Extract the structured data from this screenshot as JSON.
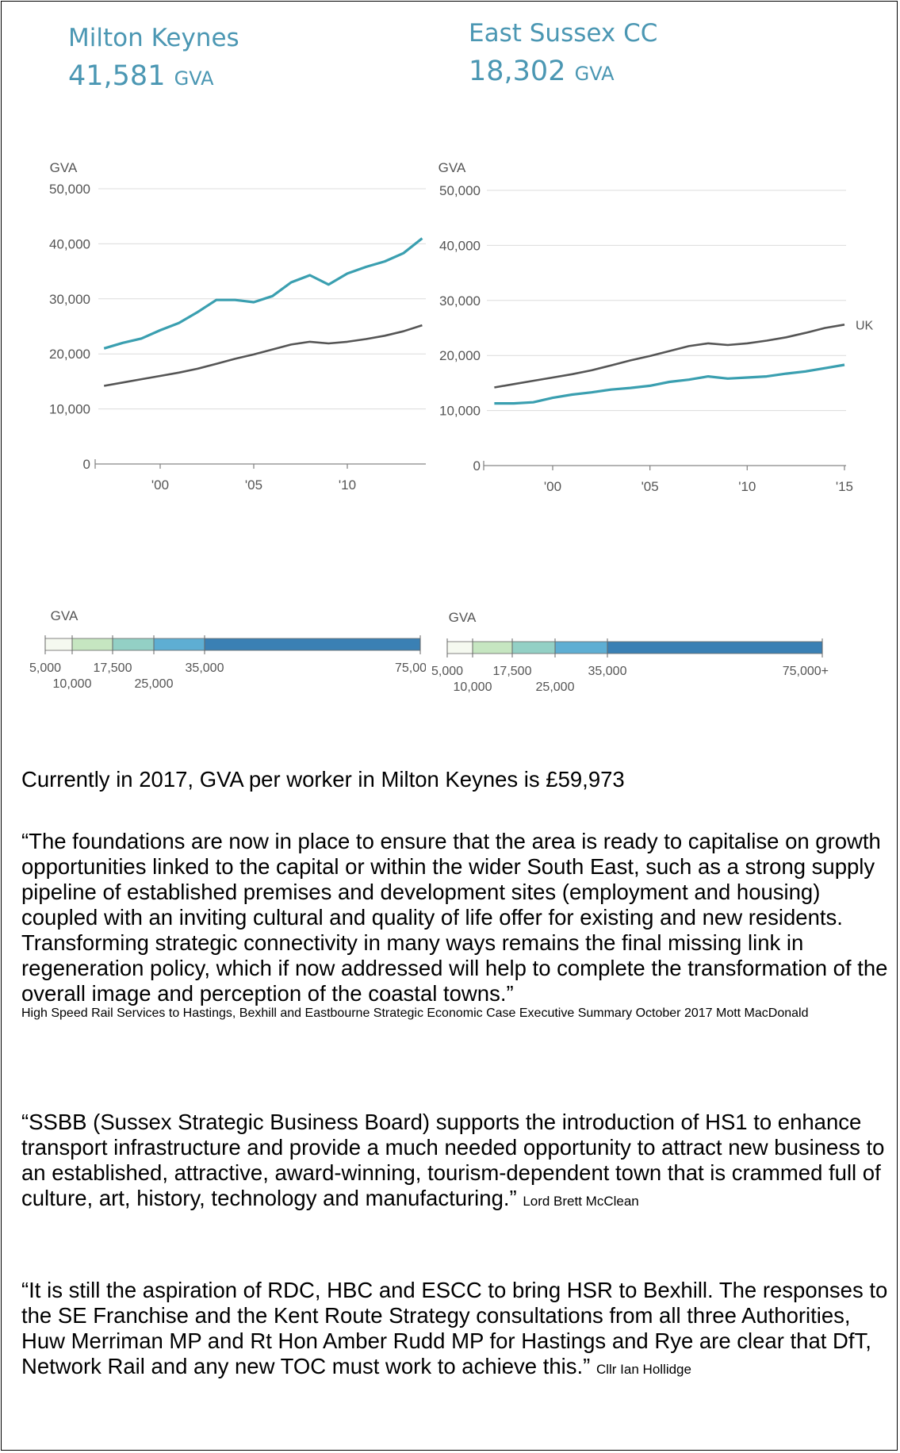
{
  "panels": [
    {
      "area": "Milton Keynes",
      "value": "41,581",
      "unit": "GVA"
    },
    {
      "area": "East Sussex CC",
      "value": "18,302",
      "unit": "GVA"
    }
  ],
  "chart_data": [
    {
      "type": "line",
      "ylabel": "GVA",
      "ylim": [
        0,
        50000
      ],
      "yticks": [
        "0",
        "10,000",
        "20,000",
        "30,000",
        "40,000",
        "50,000"
      ],
      "xticks": [
        "'00",
        "'05",
        "'10"
      ],
      "series": [
        {
          "color": "#3a9fb0",
          "x": [
            1997,
            1998,
            1999,
            2000,
            2001,
            2002,
            2003,
            2004,
            2005,
            2006,
            2007,
            2008,
            2009,
            2010,
            2011,
            2012,
            2013,
            2014
          ],
          "values": [
            21000,
            22000,
            22800,
            24300,
            25600,
            27600,
            29800,
            29800,
            29400,
            30500,
            33000,
            34300,
            32600,
            34600,
            35800,
            36800,
            38300,
            41000
          ]
        },
        {
          "color": "#555555",
          "x": [
            1997,
            1998,
            1999,
            2000,
            2001,
            2002,
            2003,
            2004,
            2005,
            2006,
            2007,
            2008,
            2009,
            2010,
            2011,
            2012,
            2013,
            2014
          ],
          "values": [
            14200,
            14800,
            15400,
            16000,
            16600,
            17300,
            18200,
            19100,
            19900,
            20800,
            21700,
            22200,
            21900,
            22200,
            22700,
            23300,
            24100,
            25200
          ]
        }
      ]
    },
    {
      "type": "line",
      "ylabel": "GVA",
      "ylim": [
        0,
        50000
      ],
      "yticks": [
        "0",
        "10,000",
        "20,000",
        "30,000",
        "40,000",
        "50,000"
      ],
      "xticks": [
        "'00",
        "'05",
        "'10",
        "'15"
      ],
      "series": [
        {
          "name": "UK",
          "color": "#555555",
          "x": [
            1997,
            1998,
            1999,
            2000,
            2001,
            2002,
            2003,
            2004,
            2005,
            2006,
            2007,
            2008,
            2009,
            2010,
            2011,
            2012,
            2013,
            2014,
            2015
          ],
          "values": [
            14200,
            14800,
            15400,
            16000,
            16600,
            17300,
            18200,
            19100,
            19900,
            20800,
            21700,
            22200,
            21900,
            22200,
            22700,
            23300,
            24100,
            25000,
            25600
          ]
        },
        {
          "color": "#3a9fb0",
          "x": [
            1997,
            1998,
            1999,
            2000,
            2001,
            2002,
            2003,
            2004,
            2005,
            2006,
            2007,
            2008,
            2009,
            2010,
            2011,
            2012,
            2013,
            2014,
            2015
          ],
          "values": [
            11300,
            11300,
            11500,
            12300,
            12900,
            13300,
            13800,
            14100,
            14500,
            15200,
            15600,
            16200,
            15800,
            16000,
            16200,
            16700,
            17100,
            17700,
            18300
          ]
        }
      ]
    }
  ],
  "legends": [
    {
      "title": "GVA",
      "labels_top": [
        "5,000",
        "17,500",
        "35,000",
        "75,00"
      ],
      "labels_bottom": [
        "10,000",
        "25,000"
      ]
    },
    {
      "title": "GVA",
      "labels_top": [
        "5,000",
        "17,500",
        "35,000",
        "75,000+"
      ],
      "labels_bottom": [
        "10,000",
        "25,000"
      ]
    }
  ],
  "legend_colors": [
    "#f5f9f0",
    "#c6e6c1",
    "#93d0c5",
    "#5eaed3",
    "#3a80b4"
  ],
  "text": {
    "p1": "Currently in 2017, GVA per worker in Milton Keynes is £59,973",
    "q1": "“The foundations are now in place to ensure that the area is ready to capitalise on growth opportunities linked to the capital or within the wider South East, such as a strong supply pipeline of established premises and development sites (employment and housing) coupled with an inviting cultural and quality of life offer for existing and new residents. Transforming strategic connectivity in many ways remains the final missing link in regeneration policy, which if now addressed will help to complete the transformation of the overall image and perception of the coastal towns.”",
    "s1": "High Speed Rail Services to Hastings, Bexhill and Eastbourne Strategic Economic Case Executive Summary October 2017 Mott MacDonald",
    "q2": "“SSBB (Sussex Strategic Business Board) supports the introduction of HS1 to enhance transport infrastructure and provide a much needed opportunity to attract new business to an established, attractive, award-winning, tourism-dependent town that is crammed full of culture, art, history, technology and manufacturing.”",
    "s2": "Lord Brett McClean",
    "q3": "“It is still the aspiration of RDC, HBC and ESCC to bring HSR to Bexhill. The responses to the SE Franchise and the Kent Route Strategy consultations from all three Authorities, Huw Merriman MP and Rt Hon Amber Rudd MP for Hastings and Rye are clear that DfT, Network Rail and any new TOC must work to achieve this.”",
    "s3": "Cllr Ian Hollidge"
  }
}
